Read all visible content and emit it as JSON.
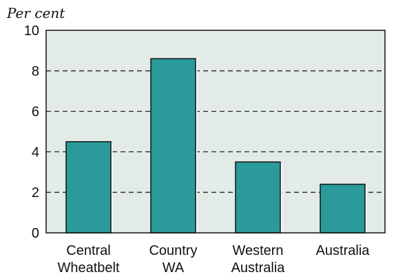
{
  "chart_data": {
    "type": "bar",
    "title": "",
    "ylabel": "Per cent",
    "xlabel": "",
    "ylim": [
      0,
      10
    ],
    "yticks": [
      0,
      2,
      4,
      6,
      8,
      10
    ],
    "categories": [
      [
        "Central",
        "Wheatbelt"
      ],
      [
        "Country",
        "WA"
      ],
      [
        "Western",
        "Australia"
      ],
      [
        "Australia"
      ]
    ],
    "values": [
      4.5,
      8.6,
      3.5,
      2.4
    ],
    "grid": true,
    "colors": {
      "bar": "#2a9a9a",
      "plot_background": "#e3ebe8",
      "axis": "#111111"
    }
  }
}
